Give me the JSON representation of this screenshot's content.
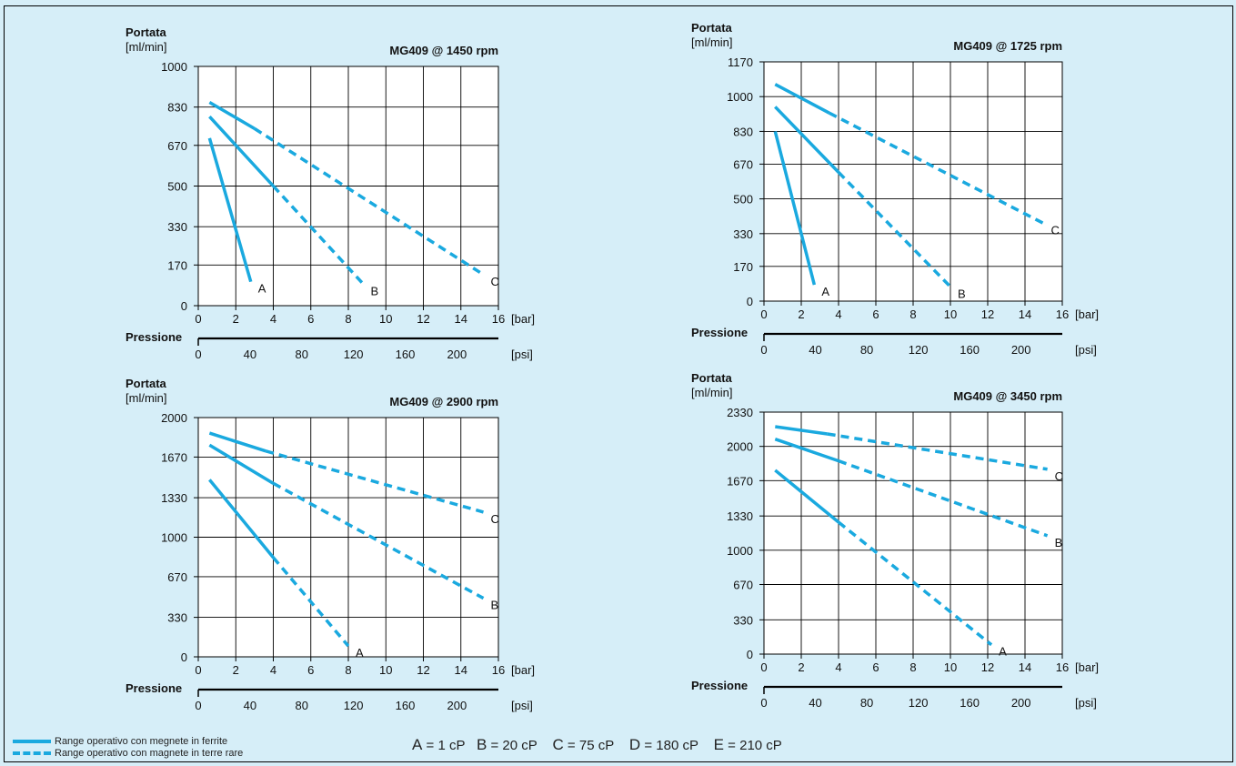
{
  "legend": {
    "solid_label": "Range operativo con megnete in ferrite",
    "dashed_label": "Range operativo con magnete in terre rare"
  },
  "viscosity_key": [
    {
      "letter": "A",
      "value": "= 1 cP"
    },
    {
      "letter": "B",
      "value": "= 20 cP"
    },
    {
      "letter": "C",
      "value": "= 75 cP"
    },
    {
      "letter": "D",
      "value": "= 180 cP"
    },
    {
      "letter": "E",
      "value": "= 210 cP"
    }
  ],
  "colors": {
    "line": "#1aa9df",
    "background": "#d6eef8",
    "plot": "#ffffff"
  },
  "chart_data": [
    {
      "type": "line",
      "title": "MG409 @ 1450 rpm",
      "ylabel_1": "Portata",
      "ylabel_2": "[ml/min]",
      "xlabel": "Pressione",
      "x_unit": "[bar]",
      "x2_unit": "[psi]",
      "xlim": [
        0,
        16
      ],
      "ylim": [
        0,
        1000
      ],
      "x_ticks": [
        0,
        2,
        4,
        6,
        8,
        10,
        12,
        14,
        16
      ],
      "y_ticks": [
        0,
        170,
        330,
        500,
        670,
        830,
        1000
      ],
      "x2_ticks": [
        0,
        40,
        80,
        120,
        160,
        200
      ],
      "grid": true,
      "series": [
        {
          "name": "A",
          "solid": [
            [
              0.6,
              700
            ],
            [
              2.8,
              100
            ]
          ],
          "dashed": []
        },
        {
          "name": "B",
          "solid": [
            [
              0.6,
              790
            ],
            [
              4,
              500
            ]
          ],
          "dashed": [
            [
              4,
              500
            ],
            [
              8.8,
              90
            ]
          ]
        },
        {
          "name": "C",
          "solid": [
            [
              0.6,
              850
            ],
            [
              3,
              740
            ]
          ],
          "dashed": [
            [
              3,
              740
            ],
            [
              15.2,
              130
            ]
          ]
        }
      ]
    },
    {
      "type": "line",
      "title": "MG409 @ 1725 rpm",
      "ylabel_1": "Portata",
      "ylabel_2": "[ml/min]",
      "xlabel": "Pressione",
      "x_unit": "[bar]",
      "x2_unit": "[psi]",
      "xlim": [
        0,
        16
      ],
      "ylim": [
        0,
        1170
      ],
      "x_ticks": [
        0,
        2,
        4,
        6,
        8,
        10,
        12,
        14,
        16
      ],
      "y_ticks": [
        0,
        170,
        330,
        500,
        670,
        830,
        1000,
        1170
      ],
      "x2_ticks": [
        0,
        40,
        80,
        120,
        160,
        200
      ],
      "grid": true,
      "series": [
        {
          "name": "A",
          "solid": [
            [
              0.6,
              830
            ],
            [
              2.7,
              80
            ]
          ],
          "dashed": []
        },
        {
          "name": "B",
          "solid": [
            [
              0.6,
              950
            ],
            [
              4,
              630
            ]
          ],
          "dashed": [
            [
              4,
              630
            ],
            [
              10,
              70
            ]
          ]
        },
        {
          "name": "C",
          "solid": [
            [
              0.6,
              1060
            ],
            [
              3.5,
              920
            ]
          ],
          "dashed": [
            [
              3.5,
              920
            ],
            [
              15,
              380
            ]
          ]
        }
      ]
    },
    {
      "type": "line",
      "title": "MG409 @ 2900 rpm",
      "ylabel_1": "Portata",
      "ylabel_2": "[ml/min]",
      "xlabel": "Pressione",
      "x_unit": "[bar]",
      "x2_unit": "[psi]",
      "xlim": [
        0,
        16
      ],
      "ylim": [
        0,
        2000
      ],
      "x_ticks": [
        0,
        2,
        4,
        6,
        8,
        10,
        12,
        14,
        16
      ],
      "y_ticks": [
        0,
        330,
        670,
        1000,
        1330,
        1670,
        2000
      ],
      "x2_ticks": [
        0,
        40,
        80,
        120,
        160,
        200
      ],
      "grid": true,
      "series": [
        {
          "name": "A",
          "solid": [
            [
              0.6,
              1480
            ],
            [
              4,
              830
            ]
          ],
          "dashed": [
            [
              4,
              830
            ],
            [
              8,
              90
            ]
          ]
        },
        {
          "name": "B",
          "solid": [
            [
              0.6,
              1770
            ],
            [
              4,
              1450
            ]
          ],
          "dashed": [
            [
              4,
              1450
            ],
            [
              15.2,
              490
            ]
          ]
        },
        {
          "name": "C",
          "solid": [
            [
              0.6,
              1870
            ],
            [
              3.6,
              1720
            ]
          ],
          "dashed": [
            [
              3.6,
              1720
            ],
            [
              15.2,
              1210
            ]
          ]
        }
      ]
    },
    {
      "type": "line",
      "title": "MG409 @ 3450 rpm",
      "ylabel_1": "Portata",
      "ylabel_2": "[ml/min]",
      "xlabel": "Pressione",
      "x_unit": "[bar]",
      "x2_unit": "[psi]",
      "xlim": [
        0,
        16
      ],
      "ylim": [
        0,
        2330
      ],
      "x_ticks": [
        0,
        2,
        4,
        6,
        8,
        10,
        12,
        14,
        16
      ],
      "y_ticks": [
        0,
        330,
        670,
        1000,
        1330,
        1670,
        2000,
        2330
      ],
      "x2_ticks": [
        0,
        40,
        80,
        120,
        160,
        200
      ],
      "grid": true,
      "series": [
        {
          "name": "A",
          "solid": [
            [
              0.6,
              1770
            ],
            [
              4,
              1270
            ]
          ],
          "dashed": [
            [
              4,
              1270
            ],
            [
              12.2,
              90
            ]
          ]
        },
        {
          "name": "B",
          "solid": [
            [
              0.6,
              2070
            ],
            [
              4,
              1860
            ]
          ],
          "dashed": [
            [
              4,
              1860
            ],
            [
              15.2,
              1140
            ]
          ]
        },
        {
          "name": "C",
          "solid": [
            [
              0.6,
              2190
            ],
            [
              3.4,
              2120
            ]
          ],
          "dashed": [
            [
              3.4,
              2120
            ],
            [
              15.2,
              1780
            ]
          ]
        }
      ]
    }
  ]
}
